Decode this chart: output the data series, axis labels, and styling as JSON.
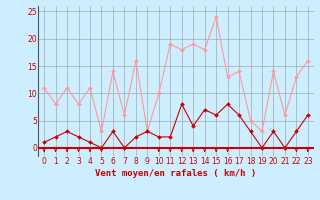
{
  "x": [
    0,
    1,
    2,
    3,
    4,
    5,
    6,
    7,
    8,
    9,
    10,
    11,
    12,
    13,
    14,
    15,
    16,
    17,
    18,
    19,
    20,
    21,
    22,
    23
  ],
  "wind_avg": [
    1,
    2,
    3,
    2,
    1,
    0,
    3,
    0,
    2,
    3,
    2,
    2,
    8,
    4,
    7,
    6,
    8,
    6,
    3,
    0,
    3,
    0,
    3,
    6
  ],
  "wind_gust": [
    11,
    8,
    11,
    8,
    11,
    3,
    14,
    6,
    16,
    3,
    10,
    19,
    18,
    19,
    18,
    24,
    13,
    14,
    5,
    3,
    14,
    6,
    13,
    16
  ],
  "arrow_hours": [
    0,
    1,
    2,
    3,
    4,
    5,
    6,
    7,
    8,
    9,
    10,
    11,
    12,
    13,
    14,
    15,
    16,
    17,
    18,
    19,
    20,
    21,
    22,
    23
  ],
  "no_arrow_hours": [
    6,
    7,
    8,
    9,
    17,
    18,
    19,
    20,
    21
  ],
  "bg_color": "#cceeff",
  "grid_color": "#999999",
  "avg_color": "#cc0000",
  "gust_color": "#ff9999",
  "arrow_color": "#cc0000",
  "xlabel": "Vent moyen/en rafales ( km/h )",
  "ylim": [
    -0.5,
    26
  ],
  "yticks": [
    0,
    5,
    10,
    15,
    20,
    25
  ],
  "xticks": [
    0,
    1,
    2,
    3,
    4,
    5,
    6,
    7,
    8,
    9,
    10,
    11,
    12,
    13,
    14,
    15,
    16,
    17,
    18,
    19,
    20,
    21,
    22,
    23
  ]
}
